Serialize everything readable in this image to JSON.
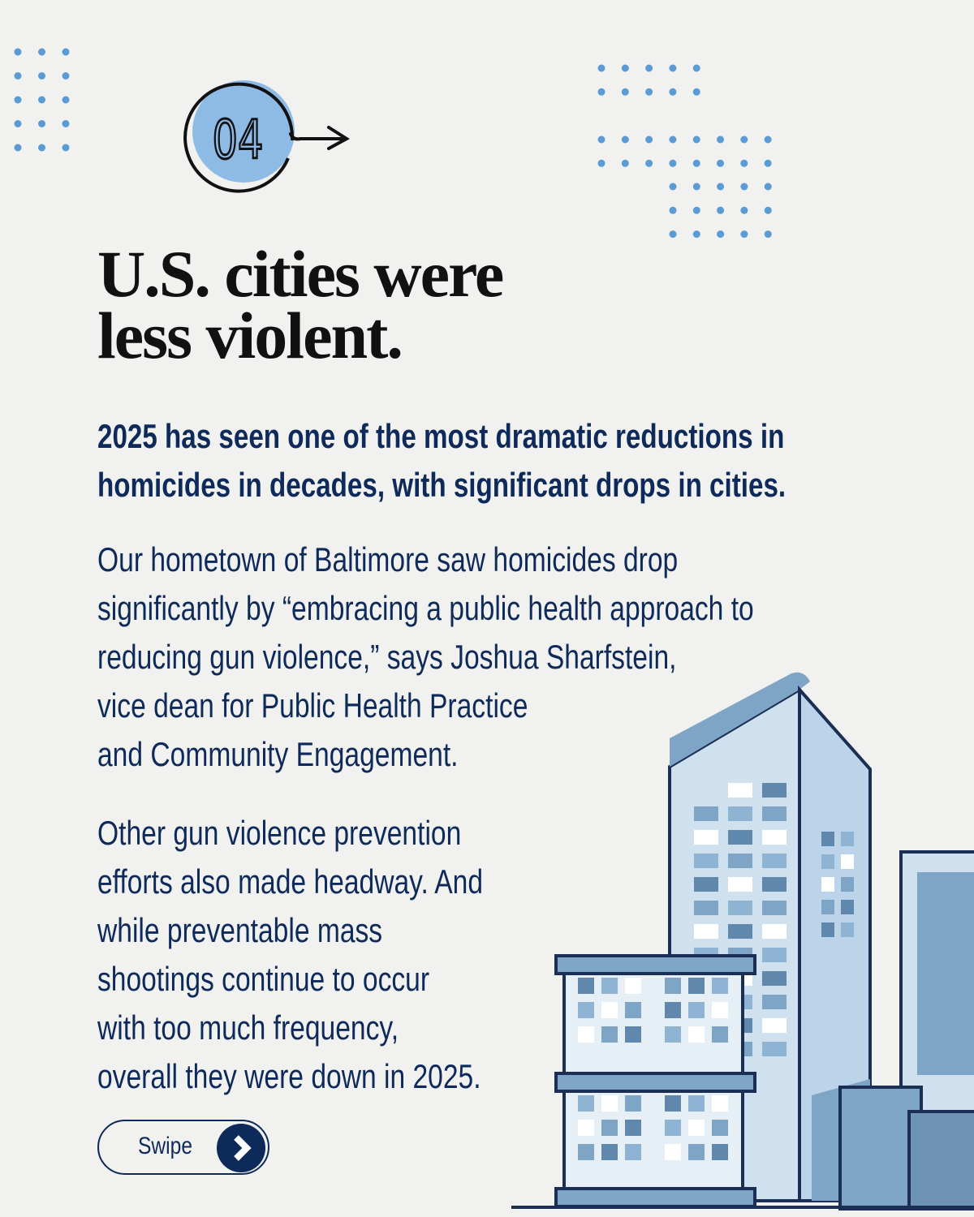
{
  "step_badge": {
    "number": "04",
    "accent": "#8dbbe6"
  },
  "headline": [
    "U.S. cities were",
    "less violent."
  ],
  "subheading": [
    "2025 has seen one of the most dramatic reductions in",
    "homicides in decades, with significant drops in cities."
  ],
  "paragraph1": [
    "Our hometown of Baltimore saw homicides drop",
    "significantly by “embracing a public health approach to",
    "reducing gun violence,” says Joshua Sharfstein,",
    "vice dean for Public Health Practice",
    "and Community Engagement."
  ],
  "paragraph2": [
    "Other gun violence prevention",
    "efforts also made headway. And",
    "while preventable mass",
    "shootings continue to occur",
    "with too much frequency,",
    "overall they were down in 2025."
  ],
  "swipe_button": {
    "label": "Swipe",
    "icon": "chevron-right-icon"
  },
  "colors": {
    "navy": "#0e2a5a",
    "dot_blue": "#5b9bd5",
    "building_blue": "#7fa5c6"
  }
}
